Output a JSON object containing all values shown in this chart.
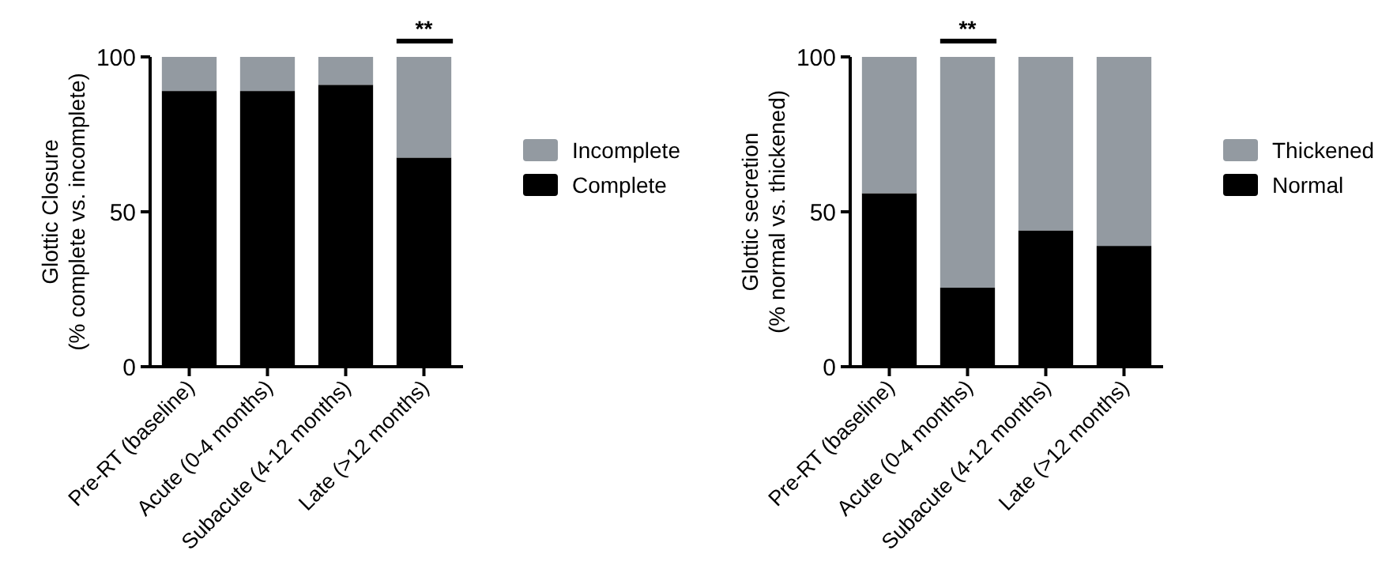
{
  "chart_data": [
    {
      "type": "bar",
      "stacked": true,
      "ylabel": "Glottic Closure\n(% complete vs. incomplete)",
      "categories": [
        "Pre-RT (baseline)",
        "Acute (0-4 months)",
        "Subacute (4-12 months)",
        "Late (>12 months)"
      ],
      "series": [
        {
          "name": "Complete",
          "color": "#000000",
          "values": [
            89,
            89,
            91,
            67.5
          ]
        },
        {
          "name": "Incomplete",
          "color": "#939aa1",
          "values": [
            11,
            11,
            9,
            32.5
          ]
        }
      ],
      "ylim": [
        0,
        100
      ],
      "yticks": [
        0,
        50,
        100
      ],
      "legend": "right",
      "annotations": [
        "**"
      ]
    },
    {
      "type": "bar",
      "stacked": true,
      "ylabel": "Glottic secretion\n(% normal vs. thickened)",
      "categories": [
        "Pre-RT (baseline)",
        "Acute (0-4 months)",
        "Subacute (4-12 months)",
        "Late (>12 months)"
      ],
      "series": [
        {
          "name": "Normal",
          "color": "#000000",
          "values": [
            56,
            25.5,
            44,
            39
          ]
        },
        {
          "name": "Thickened",
          "color": "#939aa1",
          "values": [
            44,
            74.5,
            56,
            61
          ]
        }
      ],
      "ylim": [
        0,
        100
      ],
      "yticks": [
        0,
        50,
        100
      ],
      "legend": "right",
      "annotations": [
        "**"
      ]
    }
  ]
}
